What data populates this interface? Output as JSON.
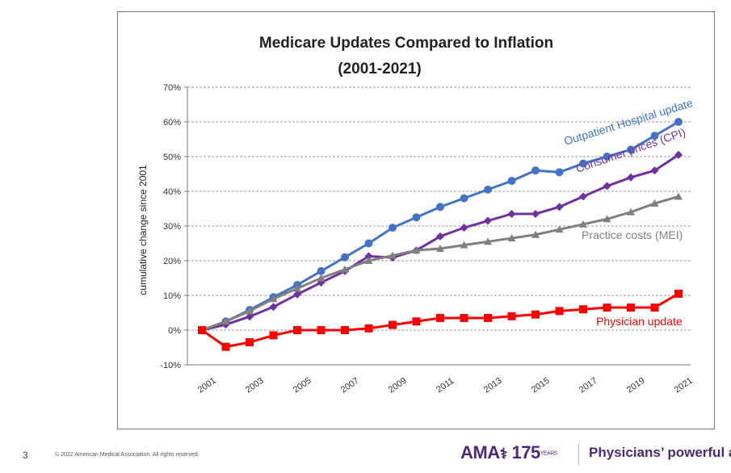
{
  "chart_data": {
    "type": "line",
    "title": "Medicare Updates Compared to Inflation",
    "subtitle": "(2001-2021)",
    "xlabel": "",
    "ylabel": "cumulative change since 2001",
    "ylim": [
      -10,
      70
    ],
    "yticks": [
      "-10%",
      "0%",
      "10%",
      "20%",
      "30%",
      "40%",
      "50%",
      "60%",
      "70%"
    ],
    "xticks": [
      "2001",
      "2003",
      "2005",
      "2007",
      "2009",
      "2011",
      "2013",
      "2015",
      "2017",
      "2019",
      "2021"
    ],
    "x": [
      2001,
      2002,
      2003,
      2004,
      2005,
      2006,
      2007,
      2008,
      2009,
      2010,
      2011,
      2012,
      2013,
      2014,
      2015,
      2016,
      2017,
      2018,
      2019,
      2020,
      2021
    ],
    "grid": true,
    "series": [
      {
        "name": "Outpatient Hospital update",
        "color": "#4472c4",
        "marker": "circle",
        "values": [
          0,
          2.5,
          5.8,
          9.5,
          13,
          17,
          21,
          25,
          29.5,
          32.5,
          35.5,
          38,
          40.5,
          43,
          46,
          45.5,
          48,
          50,
          52,
          56,
          60
        ]
      },
      {
        "name": "Consumer prices (CPI)",
        "color": "#7030a0",
        "marker": "diamond",
        "values": [
          0,
          1.6,
          3.9,
          6.7,
          10.3,
          13.7,
          17,
          21.3,
          20.9,
          23,
          27,
          29.5,
          31.5,
          33.5,
          33.5,
          35.5,
          38.5,
          41.5,
          44,
          46,
          50.5
        ]
      },
      {
        "name": "Practice costs (MEI)",
        "color": "#808080",
        "marker": "triangle",
        "values": [
          0,
          2.5,
          5.5,
          9,
          12,
          15,
          17.5,
          20,
          21.5,
          23,
          23.5,
          24.5,
          25.5,
          26.5,
          27.5,
          29,
          30.5,
          32,
          34,
          36.5,
          38.5
        ]
      },
      {
        "name": "Physician update",
        "color": "#ff0000",
        "marker": "square",
        "values": [
          0,
          -4.8,
          -3.5,
          -1.5,
          0,
          0,
          0,
          0.5,
          1.5,
          2.5,
          3.5,
          3.5,
          3.5,
          4,
          4.5,
          5.5,
          6,
          6.5,
          6.5,
          6.5,
          10.5
        ]
      }
    ]
  },
  "footer": {
    "page": "3",
    "copyright": "© 2022 American Medical Association. All rights reserved.",
    "logo": "AMA",
    "logo_years": "175",
    "logo_years_label": "YEARS",
    "tagline": "Physicians’ powerful ally"
  }
}
